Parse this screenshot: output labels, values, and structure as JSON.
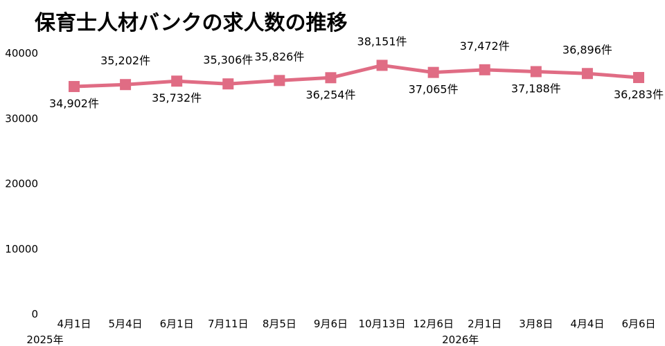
{
  "chart_data": {
    "type": "line",
    "title": "保育士人材バンクの求人数の推移",
    "categories": [
      "4月1日",
      "5月4日",
      "6月1日",
      "7月11日",
      "8月5日",
      "9月6日",
      "10月13日",
      "12月6日",
      "2月1日",
      "3月8日",
      "4月4日",
      "6月6日"
    ],
    "year_labels": [
      {
        "text": "2025年",
        "category_index": 0
      },
      {
        "text": "2026年",
        "category_index": 8
      }
    ],
    "series": [
      {
        "values": [
          34902,
          35202,
          35732,
          35306,
          35826,
          36254,
          38151,
          37065,
          37472,
          37188,
          36896,
          36283
        ],
        "labels": [
          "34,902件",
          "35,202件",
          "35,732件",
          "35,306件",
          "35,826件",
          "36,254件",
          "38,151件",
          "37,065件",
          "37,472件",
          "37,188件",
          "36,896件",
          "36,283件"
        ],
        "label_positions": [
          "below",
          "above",
          "below",
          "above",
          "above",
          "below",
          "above",
          "below",
          "above",
          "below",
          "above",
          "below"
        ],
        "color": "#e06c84"
      }
    ],
    "yticks": [
      0,
      10000,
      20000,
      30000,
      40000
    ],
    "ylim": [
      0,
      40000
    ],
    "grid": false,
    "legend": "none"
  }
}
